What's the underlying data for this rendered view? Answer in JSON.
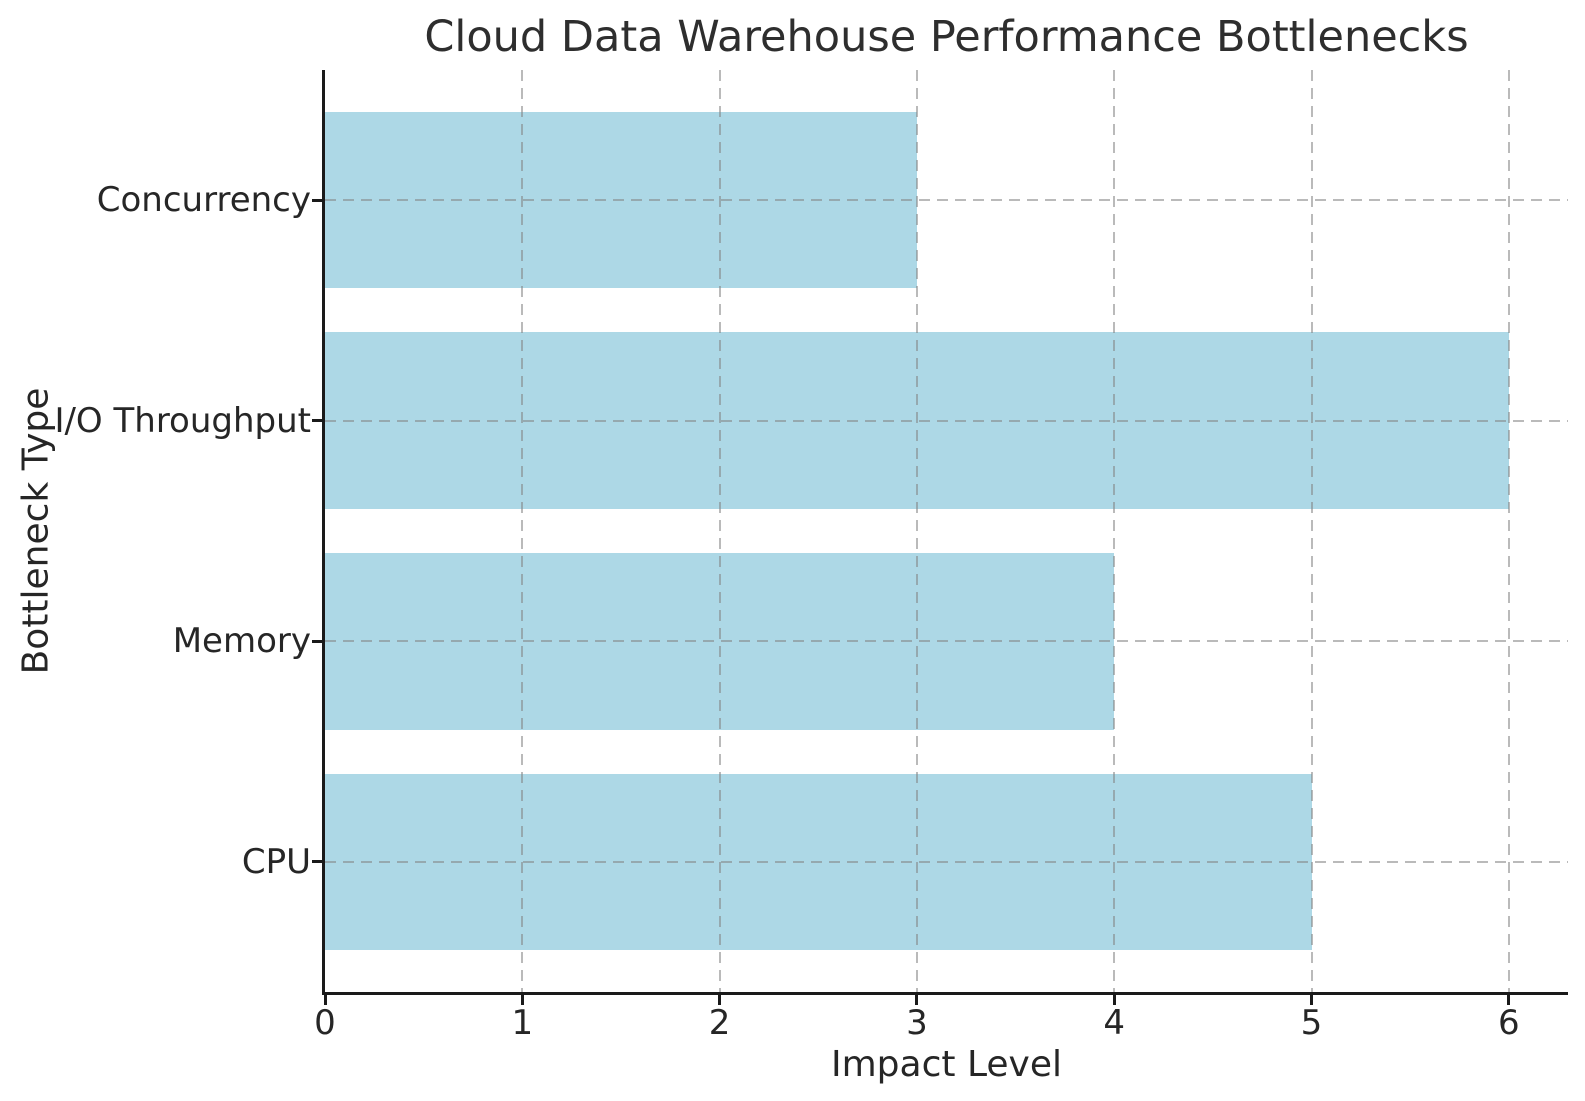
{
  "chart_data": {
    "type": "bar",
    "orientation": "horizontal",
    "title": "Cloud Data Warehouse Performance Bottlenecks",
    "xlabel": "Impact Level",
    "ylabel": "Bottleneck Type",
    "categories": [
      "Concurrency",
      "I/O Throughput",
      "Memory",
      "CPU"
    ],
    "values": [
      3,
      6,
      4,
      5
    ],
    "category_order": "top-to-bottom",
    "xticks": [
      0,
      1,
      2,
      3,
      4,
      5,
      6
    ],
    "xlim": [
      0,
      6.3
    ],
    "bar_color": "#ADD8E6",
    "grid": "dashed",
    "grid_color": "#828282",
    "grid_opacity": 0.55,
    "axis_color": "#1a1a1a",
    "text_color": "#262626",
    "legend": "none",
    "background": "#ffffff"
  }
}
